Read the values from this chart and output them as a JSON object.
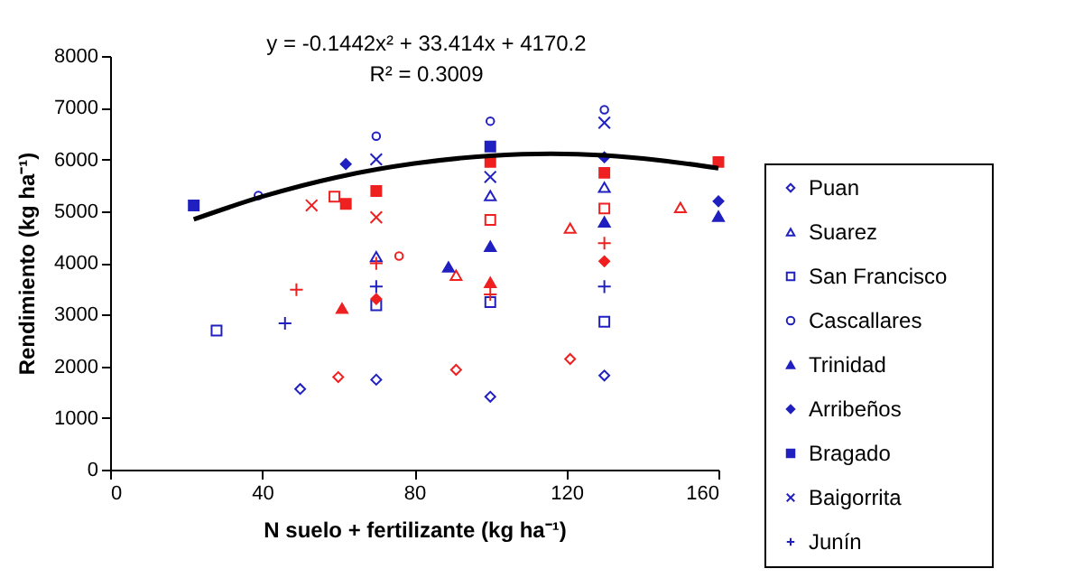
{
  "chart_data": {
    "type": "scatter",
    "xlabel": "N suelo + fertilizante (kg ha⁻¹)",
    "ylabel": "Rendimiento (kg ha⁻¹)",
    "xlim": [
      0,
      160
    ],
    "xticks": [
      0,
      40,
      80,
      120,
      160
    ],
    "ylim": [
      0,
      8000
    ],
    "yticks": [
      0,
      1000,
      2000,
      3000,
      4000,
      5000,
      6000,
      7000,
      8000
    ],
    "legend": "right",
    "grid": false,
    "annotations": [
      "y = -0.1442x² + 33.414x + 4170.2",
      "R² = 0.3009"
    ],
    "series": [
      {
        "name": "Puan",
        "marker": "diamond-open",
        "color": "#2020c0",
        "x": [
          50,
          60,
          70,
          91,
          100,
          121,
          130
        ],
        "values": [
          1560,
          1790,
          1740,
          1930,
          1410,
          2140,
          1820
        ],
        "colors": [
          "#2020c0",
          "#ee2020",
          "#2020c0",
          "#ee2020",
          "#2020c0",
          "#ee2020",
          "#2020c0"
        ]
      },
      {
        "name": "Suarez",
        "marker": "triangle-open",
        "color": "#2020c0",
        "x": [
          70,
          91,
          100,
          121,
          130,
          150
        ],
        "values": [
          4120,
          3760,
          5300,
          4670,
          5460,
          5070
        ],
        "colors": [
          "#2020c0",
          "#ee2020",
          "#2020c0",
          "#ee2020",
          "#2020c0",
          "#ee2020"
        ]
      },
      {
        "name": "San Francisco",
        "marker": "square-open",
        "color": "#2020c0",
        "x": [
          28,
          59,
          70,
          100,
          100,
          130,
          130
        ],
        "values": [
          2690,
          5280,
          3180,
          3240,
          4830,
          5050,
          2860
        ],
        "colors": [
          "#2020c0",
          "#ee2020",
          "#2020c0",
          "#2020c0",
          "#ee2020",
          "#ee2020",
          "#2020c0"
        ]
      },
      {
        "name": "Cascallares",
        "marker": "circle-open",
        "color": "#2020c0",
        "x": [
          39,
          70,
          76,
          100,
          130
        ],
        "values": [
          5300,
          6450,
          4130,
          6740,
          6960
        ],
        "colors": [
          "#2020c0",
          "#2020c0",
          "#ee2020",
          "#2020c0",
          "#2020c0"
        ]
      },
      {
        "name": "Trinidad",
        "marker": "triangle",
        "color": "#2020c0",
        "x": [
          61,
          89,
          100,
          100,
          130,
          160
        ],
        "values": [
          3120,
          3920,
          4320,
          3620,
          4790,
          4900
        ],
        "colors": [
          "#ee2020",
          "#2020c0",
          "#2020c0",
          "#ee2020",
          "#2020c0",
          "#2020c0"
        ]
      },
      {
        "name": "Arribeños",
        "marker": "diamond",
        "color": "#2020c0",
        "x": [
          62,
          70,
          130,
          130,
          160
        ],
        "values": [
          5910,
          3300,
          6040,
          4030,
          5190
        ],
        "colors": [
          "#2020c0",
          "#ee2020",
          "#2020c0",
          "#ee2020",
          "#2020c0"
        ]
      },
      {
        "name": "Bragado",
        "marker": "square",
        "color": "#2020c0",
        "x": [
          22,
          62,
          70,
          100,
          100,
          130,
          160
        ],
        "values": [
          5110,
          5140,
          5390,
          6250,
          5950,
          5740,
          5950
        ],
        "colors": [
          "#2020c0",
          "#ee2020",
          "#ee2020",
          "#2020c0",
          "#ee2020",
          "#ee2020",
          "#ee2020"
        ]
      },
      {
        "name": "Baigorrita",
        "marker": "x",
        "color": "#2020c0",
        "x": [
          53,
          70,
          70,
          100,
          130
        ],
        "values": [
          5110,
          6000,
          4880,
          5660,
          6710
        ],
        "colors": [
          "#ee2020",
          "#2020c0",
          "#ee2020",
          "#2020c0",
          "#2020c0"
        ]
      },
      {
        "name": "Junín",
        "marker": "cross",
        "color": "#2020c0",
        "x": [
          46,
          49,
          70,
          70,
          100,
          130,
          130
        ],
        "values": [
          2830,
          3480,
          3990,
          3540,
          3390,
          4380,
          3540
        ],
        "colors": [
          "#2020c0",
          "#ee2020",
          "#ee2020",
          "#2020c0",
          "#ee2020",
          "#ee2020",
          "#2020c0"
        ]
      },
      {
        "type": "line",
        "color": "#000000",
        "x": [
          22,
          40,
          60,
          80,
          100,
          116,
          130,
          145,
          160
        ],
        "values": [
          4840,
          5280,
          5660,
          5920,
          6070,
          6110,
          6080,
          5980,
          5830
        ]
      }
    ]
  }
}
